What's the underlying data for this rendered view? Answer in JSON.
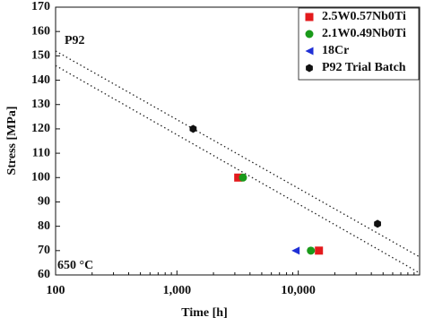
{
  "chart_data": {
    "type": "scatter",
    "x_label": "Time [h]",
    "y_label": "Stress [MPa]",
    "xscale": "log",
    "xlim": [
      100,
      100000
    ],
    "ylim": [
      60,
      170
    ],
    "xticks": [
      100,
      {
        "value": 1000,
        "label": "1,000"
      },
      {
        "value": 10000,
        "label": "10,000"
      }
    ],
    "yticks": [
      60,
      70,
      80,
      90,
      100,
      110,
      120,
      130,
      140,
      150,
      160,
      170
    ],
    "legend": "upper right",
    "series": [
      {
        "name": "2.5W0.57Nb0Ti",
        "color": "#e31a1c",
        "marker": "square",
        "x": [
          3200,
          14800
        ],
        "values": [
          100,
          70
        ]
      },
      {
        "name": "2.1W0.49Nb0Ti",
        "color": "#1a9a1a",
        "marker": "circle",
        "x": [
          3500,
          12700
        ],
        "values": [
          100,
          70
        ]
      },
      {
        "name": "18Cr",
        "color": "#1f2fd6",
        "marker": "triangle-left",
        "x": [
          9500
        ],
        "values": [
          70
        ]
      },
      {
        "name": "P92 Trial Batch",
        "color": "#111111",
        "marker": "hexagon",
        "x": [
          1360,
          45000
        ],
        "values": [
          120,
          81
        ]
      }
    ],
    "guide_lines": [
      {
        "x": [
          100,
          100000
        ],
        "values": [
          152,
          67.4
        ]
      },
      {
        "x": [
          100,
          100000
        ],
        "values": [
          146,
          60.8
        ]
      }
    ],
    "annotations": [
      "P92",
      "650 °C"
    ]
  }
}
